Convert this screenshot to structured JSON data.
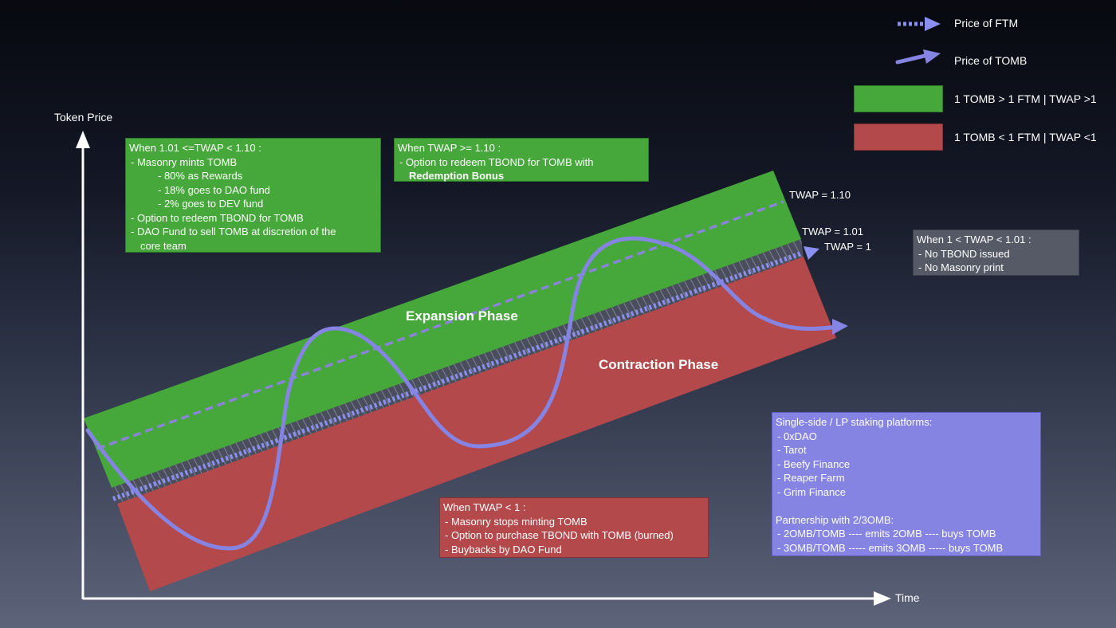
{
  "axes": {
    "y_label": "Token Price",
    "x_label": "Time"
  },
  "legend": {
    "ftm": "Price of FTM",
    "tomb": "Price of TOMB",
    "green": "1 TOMB > 1 FTM | TWAP >1",
    "red": "1 TOMB < 1 FTM | TWAP <1"
  },
  "colors": {
    "expansion": "#46a83a",
    "contraction": "#b4494c",
    "neutral_band": "#555a66",
    "price_line": "#8584e3",
    "platform_box": "#8584e3"
  },
  "phases": {
    "expansion": "Expansion Phase",
    "contraction": "Contraction Phase"
  },
  "thresholds": {
    "t110": "TWAP = 1.10",
    "t101": "TWAP = 1.01",
    "t1": "TWAP = 1"
  },
  "boxes": {
    "expansion_low": {
      "title": "When 1.01 <=TWAP < 1.10 :",
      "lines": [
        "-  Masonry mints TOMB",
        "-  80% as Rewards",
        "-  18% goes to DAO fund",
        "-  2% goes to DEV fund",
        "-  Option to redeem TBOND for TOMB",
        "-  DAO Fund to sell TOMB at discretion of the",
        "core team"
      ]
    },
    "expansion_high": {
      "title": "When TWAP >= 1.10 :",
      "line1": "-  Option to redeem TBOND for TOMB with",
      "line2": "Redemption Bonus"
    },
    "neutral": {
      "title": "When 1 < TWAP < 1.01 :",
      "lines": [
        "-  No TBOND issued",
        "-  No Masonry print"
      ]
    },
    "contraction": {
      "title": "When TWAP < 1 :",
      "lines": [
        "-  Masonry stops minting TOMB",
        "-  Option to purchase TBOND with TOMB (burned)",
        "-  Buybacks by DAO Fund"
      ]
    },
    "platforms": {
      "title": "Single-side / LP staking platforms:",
      "platforms": [
        "-  0xDAO",
        "-  Tarot",
        "-  Beefy Finance",
        "-  Reaper Farm",
        "-  Grim Finance"
      ],
      "partnership_title": "Partnership with 2/3OMB:",
      "partnerships": [
        "-  2OMB/TOMB ---- emits 2OMB ---- buys TOMB",
        "-  3OMB/TOMB ----- emits 3OMB ----- buys TOMB"
      ]
    }
  }
}
